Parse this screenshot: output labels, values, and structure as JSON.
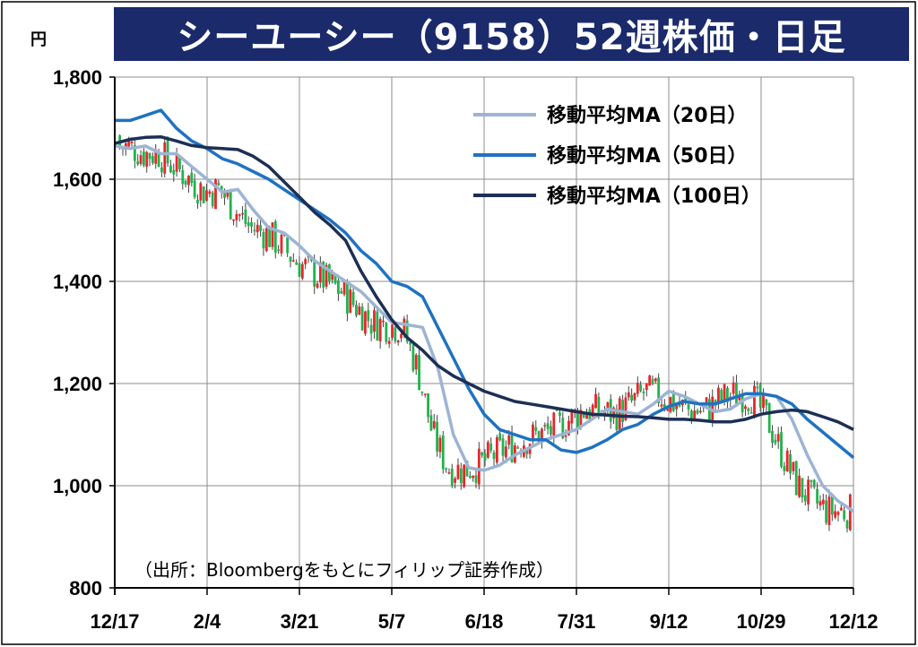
{
  "title": "シーユーシー（9158）52週株価・日足",
  "chart_data": {
    "type": "candlestick",
    "title": "シーユーシー（9158）52週株価・日足",
    "y_unit_label": "円",
    "ylim": [
      800,
      1800
    ],
    "y_ticks": [
      800,
      1000,
      1200,
      1400,
      1600,
      1800
    ],
    "y_tick_labels": [
      "800",
      "1,000",
      "1,200",
      "1,400",
      "1,600",
      "1,800"
    ],
    "x_tick_labels": [
      "12/17",
      "2/4",
      "3/21",
      "5/7",
      "6/18",
      "7/31",
      "9/12",
      "10/29",
      "12/12"
    ],
    "grid": true,
    "legend_position": "top-right",
    "source_note": "（出所：Bloombergをもとにフィリップ証券作成）",
    "up_color": "#e8262a",
    "down_color": "#22b24c",
    "series": [
      {
        "name": "移動平均MA（20日）",
        "color": "#9db4d4",
        "values": [
          1665,
          1660,
          1665,
          1650,
          1650,
          1625,
          1600,
          1575,
          1580,
          1540,
          1505,
          1495,
          1470,
          1440,
          1420,
          1400,
          1380,
          1350,
          1320,
          1315,
          1310,
          1230,
          1100,
          1035,
          1030,
          1040,
          1060,
          1075,
          1090,
          1100,
          1110,
          1130,
          1150,
          1145,
          1140,
          1160,
          1185,
          1175,
          1160,
          1145,
          1150,
          1170,
          1180,
          1175,
          1130,
          1060,
          1000,
          970,
          950
        ]
      },
      {
        "name": "移動平均MA（50日）",
        "color": "#1f72c2",
        "values": [
          1715,
          1715,
          1725,
          1735,
          1700,
          1675,
          1660,
          1640,
          1630,
          1615,
          1600,
          1580,
          1560,
          1540,
          1520,
          1495,
          1460,
          1435,
          1400,
          1390,
          1370,
          1310,
          1250,
          1190,
          1140,
          1110,
          1100,
          1090,
          1090,
          1070,
          1065,
          1075,
          1090,
          1110,
          1120,
          1140,
          1155,
          1165,
          1160,
          1160,
          1170,
          1180,
          1180,
          1175,
          1160,
          1130,
          1105,
          1080,
          1055
        ]
      },
      {
        "name": "移動平均MA（100日）",
        "color": "#1c2f55",
        "values": [
          1670,
          1678,
          1682,
          1683,
          1675,
          1666,
          1662,
          1660,
          1658,
          1645,
          1625,
          1595,
          1565,
          1535,
          1510,
          1480,
          1420,
          1370,
          1325,
          1290,
          1265,
          1235,
          1215,
          1200,
          1185,
          1175,
          1165,
          1160,
          1155,
          1150,
          1145,
          1140,
          1138,
          1136,
          1135,
          1133,
          1130,
          1130,
          1128,
          1125,
          1125,
          1130,
          1140,
          1145,
          1148,
          1145,
          1135,
          1125,
          1110
        ]
      }
    ]
  }
}
